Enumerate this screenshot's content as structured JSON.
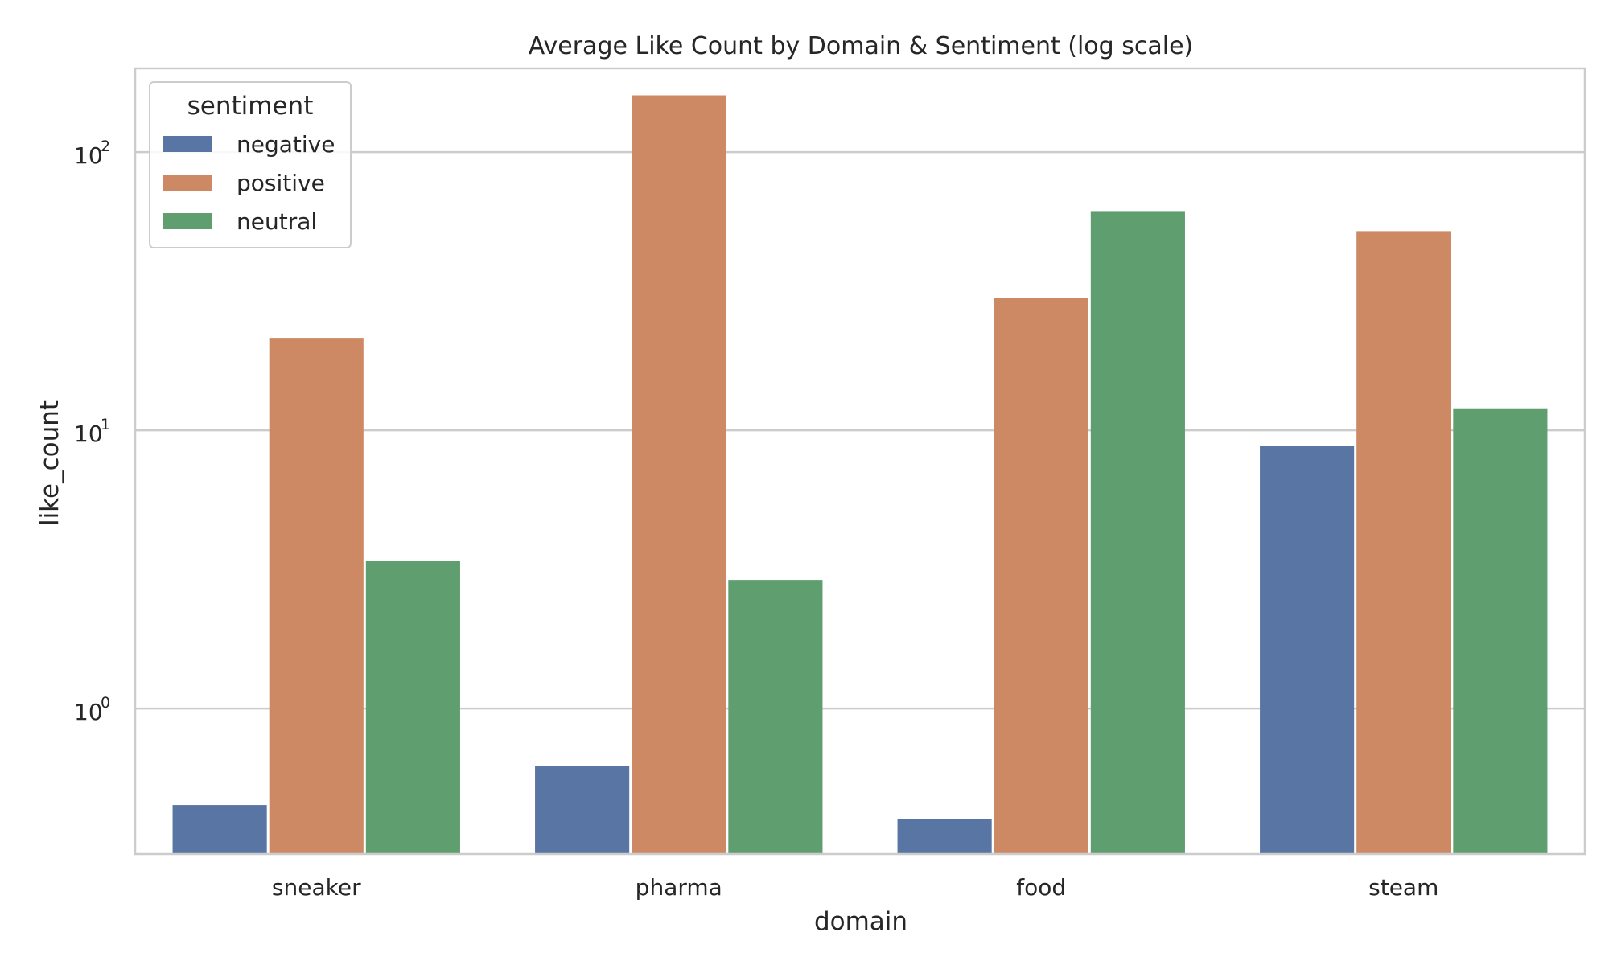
{
  "chart_data": {
    "type": "bar",
    "title": "Average Like Count by Domain & Sentiment (log scale)",
    "xlabel": "domain",
    "ylabel": "like_count",
    "yscale": "log",
    "ylim": [
      0.3,
      200
    ],
    "yticks": [
      {
        "value": 1,
        "base": "10",
        "exp": "0"
      },
      {
        "value": 10,
        "base": "10",
        "exp": "1"
      },
      {
        "value": 100,
        "base": "10",
        "exp": "2"
      }
    ],
    "categories": [
      "sneaker",
      "pharma",
      "food",
      "steam"
    ],
    "series": [
      {
        "name": "negative",
        "color": "#5975a4",
        "values": [
          0.45,
          0.62,
          0.4,
          8.8
        ]
      },
      {
        "name": "positive",
        "color": "#cc8963",
        "values": [
          21.5,
          160,
          30.0,
          52.0
        ]
      },
      {
        "name": "neutral",
        "color": "#5f9e6e",
        "values": [
          3.4,
          2.9,
          61.0,
          12.0
        ]
      }
    ],
    "legend": {
      "title": "sentiment",
      "position": "top-left"
    },
    "grid": true
  }
}
